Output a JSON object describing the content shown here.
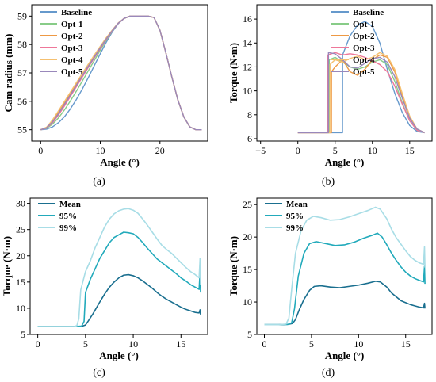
{
  "chart_data": [
    {
      "panel_label": "(a)",
      "type": "line",
      "xlabel": "Angle (°)",
      "ylabel": "Cam radius (mm)",
      "xlim": [
        -1.5,
        28
      ],
      "ylim": [
        54.6,
        59.4
      ],
      "xticks": [
        0,
        10,
        20
      ],
      "yticks": [
        55,
        56,
        57,
        58,
        59
      ],
      "legend_position": "top-left",
      "series": [
        {
          "name": "Baseline",
          "color": "#6699cc",
          "x": [
            0,
            1,
            2,
            3,
            4,
            5,
            6,
            7,
            8,
            9,
            10,
            11,
            12,
            13,
            14,
            15,
            16,
            17,
            18,
            19,
            20,
            21,
            22,
            23,
            24,
            25,
            26,
            27
          ],
          "y": [
            55.0,
            55.02,
            55.1,
            55.25,
            55.46,
            55.74,
            56.07,
            56.44,
            56.84,
            57.26,
            57.68,
            58.08,
            58.44,
            58.73,
            58.92,
            59.0,
            59.0,
            59.0,
            59.0,
            58.95,
            58.5,
            57.7,
            56.85,
            56.05,
            55.45,
            55.1,
            55.0,
            55.0
          ]
        },
        {
          "name": "Opt-1",
          "color": "#88cc88",
          "x": [
            0,
            1,
            2,
            3,
            4,
            5,
            6,
            7,
            8,
            9,
            10,
            11,
            12,
            13,
            14,
            15,
            16,
            17,
            18,
            19,
            20,
            21,
            22,
            23,
            24,
            25,
            26,
            27
          ],
          "y": [
            55.0,
            55.05,
            55.2,
            55.42,
            55.7,
            56.02,
            56.36,
            56.72,
            57.08,
            57.44,
            57.8,
            58.15,
            58.47,
            58.74,
            58.92,
            59.0,
            59.0,
            59.0,
            59.0,
            58.95,
            58.5,
            57.7,
            56.85,
            56.05,
            55.45,
            55.1,
            55.0,
            55.0
          ]
        },
        {
          "name": "Opt-2",
          "color": "#ee9944",
          "x": [
            0,
            1,
            2,
            3,
            4,
            5,
            6,
            7,
            8,
            9,
            10,
            11,
            12,
            13,
            14,
            15,
            16,
            17,
            18,
            19,
            20,
            21,
            22,
            23,
            24,
            25,
            26,
            27
          ],
          "y": [
            55.0,
            55.08,
            55.32,
            55.62,
            55.95,
            56.28,
            56.62,
            56.95,
            57.28,
            57.6,
            57.92,
            58.22,
            58.5,
            58.75,
            58.92,
            59.0,
            59.0,
            59.0,
            59.0,
            58.95,
            58.5,
            57.7,
            56.85,
            56.05,
            55.45,
            55.1,
            55.0,
            55.0
          ]
        },
        {
          "name": "Opt-3",
          "color": "#ee7799",
          "x": [
            0,
            1,
            2,
            3,
            4,
            5,
            6,
            7,
            8,
            9,
            10,
            11,
            12,
            13,
            14,
            15,
            16,
            17,
            18,
            19,
            20,
            21,
            22,
            23,
            24,
            25,
            26,
            27
          ],
          "y": [
            55.0,
            55.06,
            55.25,
            55.52,
            55.84,
            56.18,
            56.52,
            56.86,
            57.2,
            57.53,
            57.86,
            58.18,
            58.48,
            58.74,
            58.92,
            59.0,
            59.0,
            59.0,
            59.0,
            58.95,
            58.5,
            57.7,
            56.85,
            56.05,
            55.45,
            55.1,
            55.0,
            55.0
          ]
        },
        {
          "name": "Opt-4",
          "color": "#f5c070",
          "x": [
            0,
            1,
            2,
            3,
            4,
            5,
            6,
            7,
            8,
            9,
            10,
            11,
            12,
            13,
            14,
            15,
            16,
            17,
            18,
            19,
            20,
            21,
            22,
            23,
            24,
            25,
            26,
            27
          ],
          "y": [
            55.0,
            55.09,
            55.35,
            55.67,
            56.0,
            56.33,
            56.66,
            56.99,
            57.31,
            57.63,
            57.94,
            58.24,
            58.51,
            58.76,
            58.92,
            59.0,
            59.0,
            59.0,
            59.0,
            58.95,
            58.5,
            57.7,
            56.85,
            56.05,
            55.45,
            55.1,
            55.0,
            55.0
          ]
        },
        {
          "name": "Opt-5",
          "color": "#9988bb",
          "x": [
            0,
            1,
            2,
            3,
            4,
            5,
            6,
            7,
            8,
            9,
            10,
            11,
            12,
            13,
            14,
            15,
            16,
            17,
            18,
            19,
            20,
            21,
            22,
            23,
            24,
            25,
            26,
            27
          ],
          "y": [
            55.0,
            55.07,
            55.28,
            55.57,
            55.9,
            56.23,
            56.57,
            56.91,
            57.24,
            57.56,
            57.89,
            58.2,
            58.49,
            58.75,
            58.92,
            59.0,
            59.0,
            59.0,
            59.0,
            58.95,
            58.5,
            57.7,
            56.85,
            56.05,
            55.45,
            55.1,
            55.0,
            55.0
          ]
        }
      ]
    },
    {
      "panel_label": "(b)",
      "type": "line",
      "xlabel": "Angle (°)",
      "ylabel": "Torque (N·m)",
      "xlim": [
        -5.5,
        18
      ],
      "ylim": [
        5.8,
        17.2
      ],
      "xticks": [
        -5,
        0,
        5,
        10,
        15
      ],
      "yticks": [
        6,
        8,
        10,
        12,
        14,
        16
      ],
      "legend_position": "top-right",
      "series": [
        {
          "name": "Baseline",
          "color": "#6699cc",
          "x": [
            0,
            5,
            5.99,
            6.0,
            7,
            8,
            9,
            10,
            11,
            12,
            13,
            14,
            15,
            16,
            17
          ],
          "y": [
            6.5,
            6.5,
            6.5,
            13.0,
            14.6,
            15.5,
            15.8,
            15.4,
            14.0,
            11.8,
            9.8,
            8.2,
            7.1,
            6.6,
            6.5
          ]
        },
        {
          "name": "Opt-1",
          "color": "#88cc88",
          "x": [
            0,
            4.2,
            4.21,
            5,
            6,
            7,
            8,
            9,
            10,
            11,
            12,
            13,
            14,
            15,
            16,
            17
          ],
          "y": [
            6.5,
            6.5,
            12.6,
            12.8,
            12.4,
            12.0,
            11.8,
            12.0,
            12.4,
            12.6,
            12.2,
            10.8,
            9.0,
            7.5,
            6.7,
            6.5
          ]
        },
        {
          "name": "Opt-2",
          "color": "#ee9944",
          "x": [
            0,
            4.5,
            4.51,
            5,
            6,
            7,
            8,
            9,
            10,
            11,
            12,
            13,
            14,
            15,
            16,
            17
          ],
          "y": [
            6.5,
            6.5,
            11.6,
            12.0,
            12.6,
            11.6,
            11.3,
            11.8,
            12.6,
            13.0,
            12.8,
            11.6,
            9.6,
            7.8,
            6.8,
            6.5
          ]
        },
        {
          "name": "Opt-3",
          "color": "#ee7799",
          "x": [
            0,
            4.0,
            4.01,
            5,
            6,
            7,
            8,
            9,
            10,
            11,
            12,
            13,
            14,
            15,
            16,
            17
          ],
          "y": [
            6.5,
            6.5,
            13.0,
            13.2,
            13.0,
            13.1,
            13.0,
            12.8,
            12.5,
            12.2,
            11.6,
            10.4,
            8.9,
            7.5,
            6.7,
            6.5
          ]
        },
        {
          "name": "Opt-4",
          "color": "#f5c070",
          "x": [
            0,
            4.3,
            4.31,
            5,
            6,
            7,
            8,
            9,
            10,
            11,
            12,
            13,
            14,
            15,
            16,
            17
          ],
          "y": [
            6.5,
            6.5,
            12.2,
            12.6,
            12.4,
            12.7,
            12.9,
            12.6,
            12.8,
            13.2,
            12.9,
            11.8,
            9.8,
            7.9,
            6.8,
            6.5
          ]
        },
        {
          "name": "Opt-5",
          "color": "#9988bb",
          "x": [
            0,
            4.1,
            4.11,
            5,
            6,
            7,
            8,
            9,
            10,
            11,
            12,
            13,
            14,
            15,
            16,
            17
          ],
          "y": [
            6.5,
            6.5,
            13.2,
            13.1,
            12.6,
            12.0,
            11.9,
            12.3,
            12.7,
            12.8,
            12.4,
            11.2,
            9.4,
            7.7,
            6.8,
            6.5
          ]
        }
      ]
    },
    {
      "panel_label": "(c)",
      "type": "line",
      "xlabel": "Angle (°)",
      "ylabel": "Torque (N·m)",
      "xlim": [
        -0.8,
        17.8
      ],
      "ylim": [
        5,
        31
      ],
      "xticks": [
        0,
        5,
        10,
        15
      ],
      "yticks": [
        5,
        10,
        15,
        20,
        25,
        30
      ],
      "legend_position": "top-left",
      "series": [
        {
          "name": "Mean",
          "color": "#1a6f8f",
          "x": [
            0,
            2,
            4,
            4.6,
            5,
            5.3,
            5.8,
            6.5,
            7,
            7.5,
            8,
            8.5,
            9,
            9.5,
            10,
            10.5,
            11,
            11.5,
            12,
            12.5,
            13,
            13.5,
            14,
            14.5,
            15,
            15.5,
            16,
            16.5,
            16.9,
            17.0,
            17.05
          ],
          "y": [
            6.5,
            6.5,
            6.5,
            6.55,
            6.8,
            7.6,
            9.0,
            11.2,
            12.7,
            14.0,
            15.0,
            15.8,
            16.3,
            16.4,
            16.2,
            15.8,
            15.2,
            14.5,
            13.8,
            13.0,
            12.3,
            11.7,
            11.2,
            10.7,
            10.2,
            9.8,
            9.5,
            9.2,
            9.1,
            9.7,
            8.8
          ]
        },
        {
          "name": "95%",
          "color": "#22aabb",
          "x": [
            0,
            2,
            4,
            4.6,
            4.85,
            5,
            5.5,
            6,
            6.5,
            7,
            7.5,
            8,
            8.5,
            9,
            9.5,
            10,
            10.5,
            11,
            11.5,
            12,
            12.5,
            13,
            13.5,
            14,
            14.5,
            15,
            15.5,
            16,
            16.5,
            16.9,
            17.0,
            17.05
          ],
          "y": [
            6.5,
            6.5,
            6.5,
            6.6,
            7.5,
            13.0,
            15.5,
            17.5,
            19.5,
            21.0,
            22.5,
            23.5,
            24.0,
            24.5,
            24.4,
            24.2,
            23.5,
            22.5,
            21.4,
            20.4,
            19.4,
            18.7,
            18.0,
            17.3,
            16.6,
            15.8,
            15.2,
            14.5,
            14.0,
            13.6,
            17.0,
            13.0
          ]
        },
        {
          "name": "99%",
          "color": "#a8dde6",
          "x": [
            0,
            2,
            3.8,
            4.1,
            4.3,
            4.5,
            5,
            5.5,
            6,
            6.5,
            7,
            7.5,
            8,
            8.5,
            9,
            9.5,
            10,
            10.5,
            11,
            11.5,
            12,
            12.5,
            13,
            13.5,
            14,
            14.5,
            15,
            15.5,
            16,
            16.5,
            16.9,
            17.0,
            17.05
          ],
          "y": [
            6.5,
            6.5,
            6.5,
            6.7,
            8.0,
            13.5,
            17.0,
            19.0,
            21.5,
            23.5,
            25.5,
            27.0,
            28.0,
            28.6,
            28.9,
            29.0,
            28.7,
            28.1,
            27.0,
            25.8,
            24.5,
            23.2,
            22.0,
            21.2,
            20.5,
            19.6,
            18.7,
            17.8,
            17.0,
            16.4,
            15.8,
            19.5,
            14.5
          ]
        }
      ]
    },
    {
      "panel_label": "(d)",
      "type": "line",
      "xlabel": "Angle (°)",
      "ylabel": "Torque (N·m)",
      "xlim": [
        -0.8,
        17.8
      ],
      "ylim": [
        5,
        26
      ],
      "xticks": [
        0,
        5,
        10,
        15
      ],
      "yticks": [
        5,
        10,
        15,
        20,
        25
      ],
      "legend_position": "top-left",
      "series": [
        {
          "name": "Mean",
          "color": "#1a6f8f",
          "x": [
            0,
            1.5,
            2.5,
            3.0,
            3.3,
            3.7,
            4.2,
            4.8,
            5.3,
            6,
            7,
            8,
            9,
            10,
            11,
            11.8,
            12.3,
            13,
            13.5,
            14,
            14.5,
            15,
            15.5,
            16,
            16.5,
            16.9,
            17.0,
            17.05
          ],
          "y": [
            6.5,
            6.5,
            6.55,
            6.7,
            7.3,
            8.8,
            10.4,
            11.8,
            12.4,
            12.5,
            12.3,
            12.2,
            12.4,
            12.6,
            12.9,
            13.2,
            13.1,
            12.3,
            11.4,
            10.8,
            10.2,
            9.9,
            9.6,
            9.4,
            9.2,
            9.1,
            9.8,
            9.0
          ]
        },
        {
          "name": "95%",
          "color": "#22aabb",
          "x": [
            0,
            1.5,
            2.5,
            2.9,
            3.2,
            3.6,
            4.2,
            4.8,
            5.5,
            6.5,
            7.5,
            8.5,
            9.5,
            10.5,
            11.5,
            12,
            12.5,
            13,
            13.5,
            14,
            14.5,
            15,
            15.5,
            16,
            16.5,
            16.9,
            17.0,
            17.05
          ],
          "y": [
            6.5,
            6.5,
            6.55,
            6.8,
            9.0,
            14.0,
            17.5,
            19.0,
            19.3,
            19.0,
            18.7,
            18.8,
            19.2,
            19.8,
            20.3,
            20.6,
            20.0,
            18.8,
            17.5,
            16.4,
            15.4,
            14.6,
            14.0,
            13.6,
            13.3,
            13.1,
            15.5,
            12.8
          ]
        },
        {
          "name": "99%",
          "color": "#a8dde6",
          "x": [
            0,
            1.5,
            2.3,
            2.6,
            2.9,
            3.3,
            3.9,
            4.5,
            5.2,
            6,
            7,
            8,
            9,
            10,
            11,
            11.8,
            12.3,
            13,
            13.5,
            14,
            14.5,
            15,
            15.5,
            16,
            16.5,
            16.9,
            17.0,
            17.05
          ],
          "y": [
            6.5,
            6.5,
            6.6,
            7.5,
            12.0,
            17.5,
            21.0,
            22.6,
            23.2,
            23.0,
            22.6,
            22.7,
            23.1,
            23.6,
            24.1,
            24.6,
            24.3,
            22.8,
            21.2,
            19.9,
            18.9,
            17.9,
            17.0,
            16.4,
            16.0,
            15.8,
            18.5,
            15.3
          ]
        }
      ]
    }
  ]
}
